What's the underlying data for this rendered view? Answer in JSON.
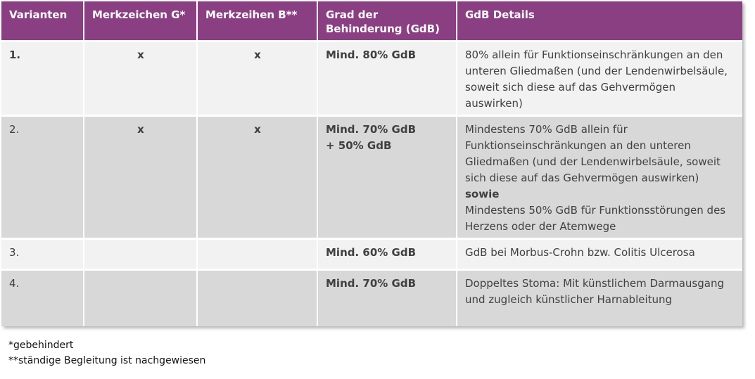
{
  "colors": {
    "header_bg": "#8b3f83",
    "row_light": "#f2f2f2",
    "row_dark": "#d8d8d8"
  },
  "table": {
    "headers": [
      "Varianten",
      "Merkzeichen G*",
      "Merkzeihen B**",
      "Grad der Behinderung (GdB)",
      "GdB Details"
    ],
    "rows": [
      {
        "variant": "1.",
        "g": "x",
        "b": "x",
        "gdb_1": "Mind. 80% GdB",
        "gdb_2": "",
        "details_1": "80% allein für Funktionseinschränkungen an den unteren Gliedmaßen (und der Lendenwirbelsäule, soweit sich diese auf das Gehvermögen auswirken)",
        "details_bold": "",
        "details_2": ""
      },
      {
        "variant": "2.",
        "g": "x",
        "b": "x",
        "gdb_1": "Mind. 70% GdB",
        "gdb_2": "+ 50% GdB",
        "details_1": "Mindestens 70% GdB allein für Funktionseinschränkungen an den unteren Gliedmaßen (und der Lendenwirbelsäule, soweit sich diese auf das Gehvermögen auswirken)",
        "details_bold": "sowie",
        "details_2": "Mindestens 50% GdB für Funktionsstörungen des Herzens oder der Atemwege"
      },
      {
        "variant": "3.",
        "g": "",
        "b": "",
        "gdb_1": "Mind. 60% GdB",
        "gdb_2": "",
        "details_1": "GdB bei Morbus-Crohn bzw. Colitis Ulcerosa",
        "details_bold": "",
        "details_2": ""
      },
      {
        "variant": "4.",
        "g": "",
        "b": "",
        "gdb_1": "Mind. 70% GdB",
        "gdb_2": "",
        "details_1": "Doppeltes Stoma: Mit künstlichem Darmausgang und zugleich künstlicher Harnableitung",
        "details_bold": "",
        "details_2": ""
      }
    ]
  },
  "footnotes": [
    "*gebehindert",
    "**ständige Begleitung ist nachgewiesen"
  ]
}
